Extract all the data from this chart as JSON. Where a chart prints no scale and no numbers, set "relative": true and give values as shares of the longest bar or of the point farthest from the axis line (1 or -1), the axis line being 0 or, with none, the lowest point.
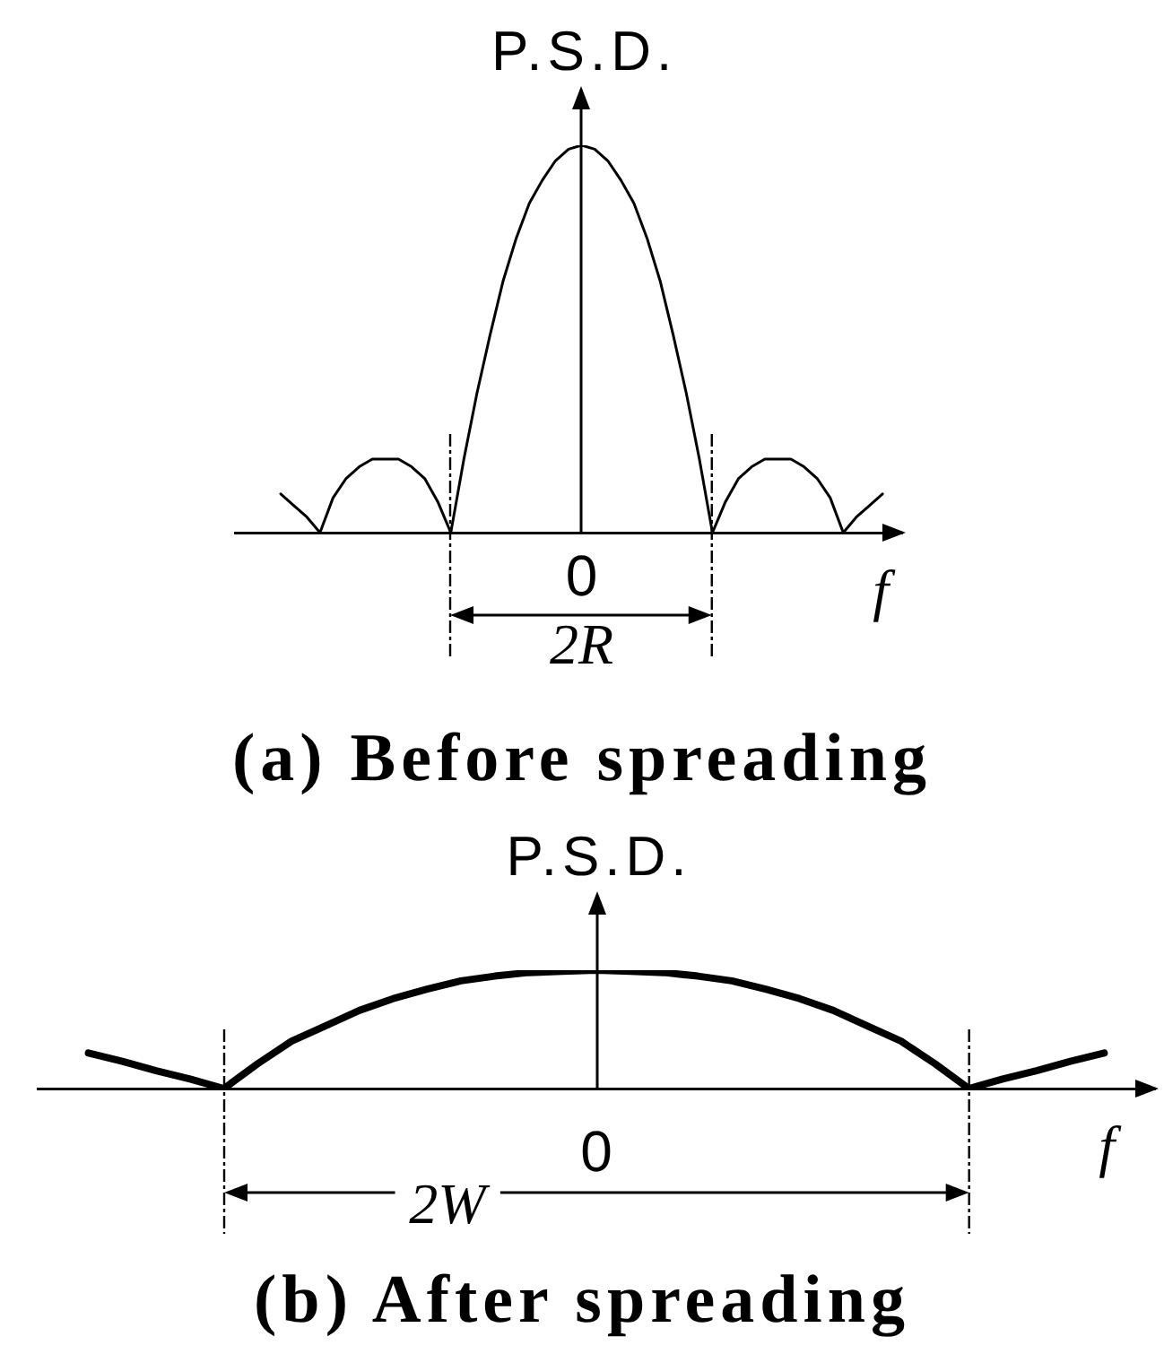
{
  "chart_data": [
    {
      "type": "line",
      "title": "(a) Before spreading",
      "xlabel": "f",
      "ylabel": "P.S.D.",
      "relative": true,
      "marker": "none",
      "color": "#000000",
      "categories": [
        null,
        null,
        null,
        null,
        null,
        null,
        null,
        null,
        null,
        null,
        null,
        null,
        null,
        null,
        null,
        null,
        null,
        null,
        null,
        null,
        null,
        null,
        null,
        null,
        null,
        null,
        null,
        null,
        null,
        null,
        null,
        null,
        null,
        null,
        null,
        null,
        null,
        null,
        null,
        null,
        null,
        null,
        null,
        null,
        null,
        null,
        null
      ],
      "values": [
        0.1,
        0.07,
        0.04,
        0,
        0.09,
        0.14,
        0.17,
        0.19,
        0.19,
        0.19,
        0.17,
        0.14,
        0.08,
        0,
        0.19,
        0.36,
        0.51,
        0.65,
        0.76,
        0.85,
        0.91,
        0.96,
        0.99,
        1,
        0.99,
        0.96,
        0.91,
        0.85,
        0.76,
        0.65,
        0.51,
        0.36,
        0.19,
        0,
        0.08,
        0.14,
        0.17,
        0.19,
        0.19,
        0.19,
        0.17,
        0.14,
        0.09,
        0,
        0.04,
        0.07,
        0.1
      ],
      "annotations": [
        "0",
        "2R"
      ]
    },
    {
      "type": "line",
      "title": "(b) After spreading",
      "xlabel": "f",
      "ylabel": "P.S.D.",
      "relative": true,
      "marker": "none",
      "color": "#000000",
      "categories": [
        null,
        null,
        null,
        null,
        null,
        null,
        null,
        null,
        null,
        null,
        null,
        null,
        null,
        null,
        null,
        null,
        null,
        null,
        null,
        null,
        null,
        null,
        null,
        null,
        null,
        null,
        null,
        null,
        null,
        null,
        null
      ],
      "values": [
        0.3,
        0.23,
        0.15,
        0.08,
        0,
        0.21,
        0.4,
        0.53,
        0.66,
        0.76,
        0.84,
        0.91,
        0.95,
        0.98,
        0.99,
        1,
        0.99,
        0.98,
        0.95,
        0.91,
        0.84,
        0.76,
        0.66,
        0.53,
        0.4,
        0.21,
        0,
        0.08,
        0.15,
        0.23,
        0.3
      ],
      "annotations": [
        "0",
        "2W"
      ]
    }
  ]
}
